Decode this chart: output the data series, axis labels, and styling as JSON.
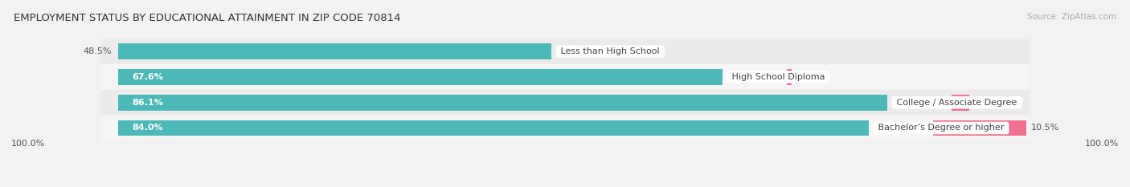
{
  "title": "EMPLOYMENT STATUS BY EDUCATIONAL ATTAINMENT IN ZIP CODE 70814",
  "source": "Source: ZipAtlas.com",
  "categories": [
    "Less than High School",
    "High School Diploma",
    "College / Associate Degree",
    "Bachelor’s Degree or higher"
  ],
  "labor_force": [
    48.5,
    67.6,
    86.1,
    84.0
  ],
  "unemployed": [
    0.0,
    0.6,
    2.0,
    10.5
  ],
  "lf_color": "#4db8b8",
  "un_color": "#f07090",
  "row_colors": [
    "#ebebeb",
    "#f5f5f5",
    "#ebebeb",
    "#f5f5f5"
  ],
  "title_fontsize": 9.5,
  "label_fontsize": 8,
  "value_fontsize": 8,
  "source_fontsize": 7.5,
  "legend_fontsize": 8
}
